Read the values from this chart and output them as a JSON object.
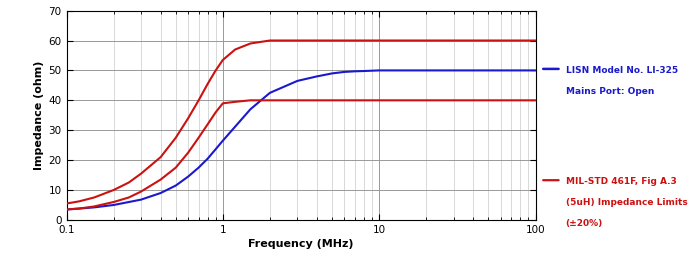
{
  "xlabel": "Frequency (MHz)",
  "ylabel": "Impedance (ohm)",
  "xlim": [
    0.1,
    100
  ],
  "ylim": [
    0,
    70
  ],
  "yticks": [
    0,
    10,
    20,
    30,
    40,
    50,
    60,
    70
  ],
  "background_color": "#ffffff",
  "grid_major_color": "#999999",
  "grid_minor_color": "#bbbbbb",
  "lisn_color": "#1a1acc",
  "mil_color": "#cc1111",
  "legend_lisn_line1": "LISN Model No. LI-325",
  "legend_lisn_line2": "Mains Port: Open",
  "legend_mil_line1": "MIL-STD 461F, Fig A.3",
  "legend_mil_line2": "(5uH) Impedance Limits",
  "legend_mil_line3": "(±20%)",
  "lisn_freq": [
    0.1,
    0.12,
    0.15,
    0.2,
    0.3,
    0.4,
    0.5,
    0.6,
    0.7,
    0.8,
    1.0,
    1.5,
    2.0,
    3.0,
    4.0,
    5.0,
    6.0,
    7.0,
    8.0,
    10.0,
    20.0,
    50.0,
    100.0
  ],
  "lisn_imp": [
    3.5,
    3.8,
    4.2,
    5.0,
    6.8,
    9.0,
    11.5,
    14.5,
    17.5,
    20.5,
    26.5,
    37.0,
    42.5,
    46.5,
    48.0,
    49.0,
    49.5,
    49.7,
    49.8,
    50.0,
    50.0,
    50.0,
    50.0
  ],
  "mil_upper_freq": [
    0.1,
    0.12,
    0.15,
    0.2,
    0.25,
    0.3,
    0.4,
    0.5,
    0.6,
    0.7,
    0.8,
    0.9,
    1.0,
    1.2,
    1.5,
    2.0,
    2.5,
    3.0,
    4.0,
    5.0,
    6.0,
    7.0,
    8.0,
    9.0,
    10.0,
    20.0,
    50.0,
    100.0
  ],
  "mil_upper_imp": [
    5.5,
    6.2,
    7.5,
    10.0,
    12.5,
    15.5,
    21.0,
    27.5,
    34.0,
    40.0,
    45.5,
    50.0,
    53.5,
    57.0,
    59.0,
    60.0,
    60.0,
    60.0,
    60.0,
    60.0,
    60.0,
    60.0,
    60.0,
    60.0,
    60.0,
    60.0,
    60.0,
    60.0
  ],
  "mil_lower_freq": [
    0.1,
    0.12,
    0.15,
    0.2,
    0.25,
    0.3,
    0.4,
    0.5,
    0.6,
    0.7,
    0.8,
    0.9,
    1.0,
    1.2,
    1.5,
    2.0,
    2.5,
    3.0,
    4.0,
    5.0,
    6.0,
    7.0,
    8.0,
    9.0,
    10.0,
    20.0,
    50.0,
    100.0
  ],
  "mil_lower_imp": [
    3.5,
    3.8,
    4.5,
    6.0,
    7.5,
    9.5,
    13.5,
    17.5,
    22.5,
    27.5,
    32.0,
    36.0,
    39.0,
    39.5,
    40.0,
    40.0,
    40.0,
    40.0,
    40.0,
    40.0,
    40.0,
    40.0,
    40.0,
    40.0,
    40.0,
    40.0,
    40.0,
    40.0
  ]
}
